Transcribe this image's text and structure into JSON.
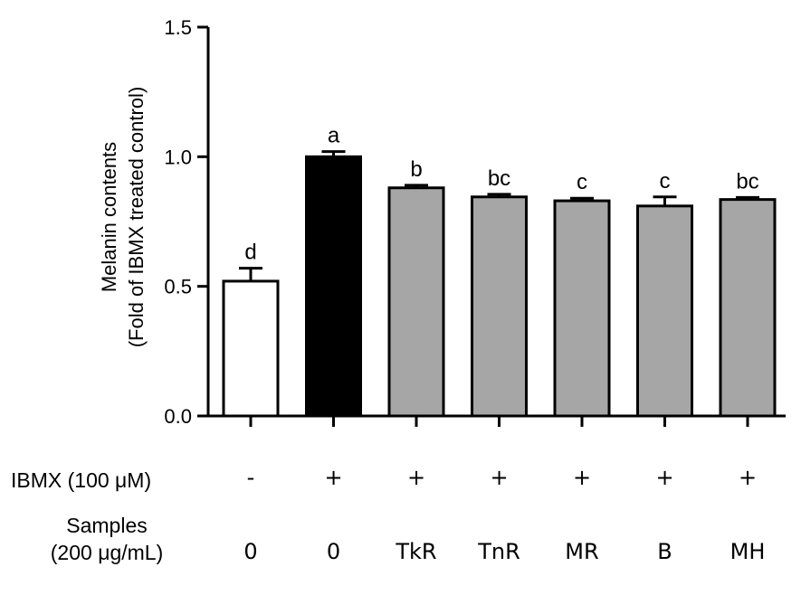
{
  "chart_data": {
    "type": "bar",
    "ylabel_lines": [
      "Melanin contents",
      "(Fold of IBMX treated control)"
    ],
    "ylim": [
      0,
      1.5
    ],
    "yticks": [
      "0.0",
      "0.5",
      "1.0",
      "1.5"
    ],
    "grid": false,
    "bars": [
      {
        "value": 0.52,
        "error": 0.05,
        "fill": "#ffffff",
        "sig": "d"
      },
      {
        "value": 1.0,
        "error": 0.02,
        "fill": "#000000",
        "sig": "a"
      },
      {
        "value": 0.88,
        "error": 0.01,
        "fill": "#a6a6a6",
        "sig": "b"
      },
      {
        "value": 0.845,
        "error": 0.01,
        "fill": "#a6a6a6",
        "sig": "bc"
      },
      {
        "value": 0.83,
        "error": 0.01,
        "fill": "#a6a6a6",
        "sig": "c"
      },
      {
        "value": 0.81,
        "error": 0.035,
        "fill": "#a6a6a6",
        "sig": "c"
      },
      {
        "value": 0.835,
        "error": 0.008,
        "fill": "#a6a6a6",
        "sig": "bc"
      }
    ]
  },
  "table": {
    "ibmx_label": "IBMX (100 μM)",
    "ibmx_values": [
      "-",
      "+",
      "+",
      "+",
      "+",
      "+",
      "+"
    ],
    "samples_label_line1": "Samples",
    "samples_label_line2": "(200 μg/mL)",
    "sample_values": [
      "0",
      "0",
      "TkR",
      "TnR",
      "MR",
      "B",
      "MH"
    ]
  }
}
